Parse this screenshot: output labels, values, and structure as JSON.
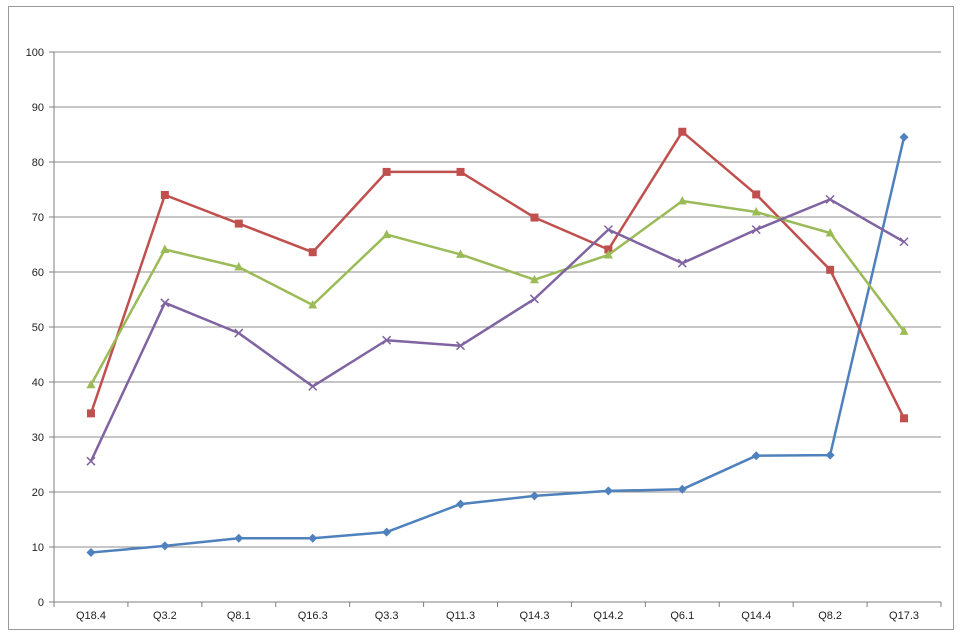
{
  "chart_data": {
    "type": "line",
    "categories": [
      "Q18.4",
      "Q3.2",
      "Q8.1",
      "Q16.3",
      "Q3.3",
      "Q11.3",
      "Q14.3",
      "Q14.2",
      "Q6.1",
      "Q14.4",
      "Q8.2",
      "Q17.3"
    ],
    "ylim": [
      0,
      100
    ],
    "yticks": [
      0,
      10,
      20,
      30,
      40,
      50,
      60,
      70,
      80,
      90,
      100
    ],
    "grid": true,
    "legend": "none",
    "series": [
      {
        "color": "#4f81bd",
        "marker": "diamond",
        "values": [
          9,
          10.2,
          11.6,
          11.6,
          12.7,
          17.8,
          19.3,
          20.2,
          20.5,
          26.6,
          26.7,
          84.5
        ]
      },
      {
        "color": "#c0504d",
        "marker": "square",
        "values": [
          34.3,
          74,
          68.8,
          63.6,
          78.2,
          78.2,
          69.9,
          64.1,
          85.5,
          74.1,
          60.4,
          33.4
        ]
      },
      {
        "color": "#9bbb59",
        "marker": "triangle",
        "values": [
          39.5,
          64.1,
          60.9,
          54,
          66.8,
          63.2,
          58.6,
          63.1,
          72.9,
          70.9,
          67.1,
          49.2
        ]
      },
      {
        "color": "#8064a2",
        "marker": "x",
        "values": [
          25.6,
          54.4,
          48.9,
          39.2,
          47.6,
          46.6,
          55.1,
          67.7,
          61.6,
          67.7,
          73.2,
          65.5
        ]
      }
    ]
  }
}
